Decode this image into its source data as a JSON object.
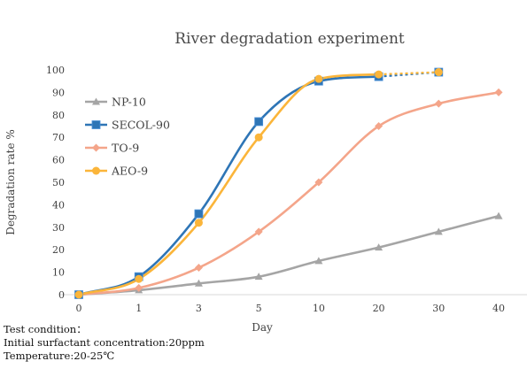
{
  "chart_data": {
    "type": "line",
    "title": "River degradation experiment",
    "xlabel": "Day",
    "ylabel": "Degradation rate %",
    "categories": [
      "0",
      "1",
      "3",
      "5",
      "10",
      "20",
      "30",
      "40"
    ],
    "ylim": [
      0,
      100
    ],
    "yticks": [
      0,
      10,
      20,
      30,
      40,
      50,
      60,
      70,
      80,
      90,
      100
    ],
    "grid": false,
    "legend_position": "left",
    "series": [
      {
        "name": "NP-10",
        "color": "#a5a5a5",
        "marker": "triangle",
        "values": [
          0,
          2,
          5,
          8,
          15,
          21,
          28,
          35
        ]
      },
      {
        "name": "SECOL-90",
        "color": "#2e75b6",
        "marker": "square",
        "values": [
          0,
          8,
          36,
          77,
          95,
          97,
          99,
          null
        ]
      },
      {
        "name": "TO-9",
        "color": "#f4a58a",
        "marker": "diamond",
        "values": [
          0,
          3,
          12,
          28,
          50,
          75,
          85,
          90
        ]
      },
      {
        "name": "AEO-9",
        "color": "#fbb53a",
        "marker": "circle",
        "values": [
          0,
          7,
          32,
          70,
          96,
          98,
          99,
          null
        ]
      }
    ],
    "dashed_segments": [
      {
        "series": "SECOL-90",
        "from_category": "20",
        "to_category": "30"
      },
      {
        "series": "AEO-9",
        "from_category": "20",
        "to_category": "30"
      }
    ]
  },
  "notes": {
    "line1": "Test condition：",
    "line2": "Initial surfactant concentration:20ppm",
    "line3": "Temperature:20-25℃"
  }
}
